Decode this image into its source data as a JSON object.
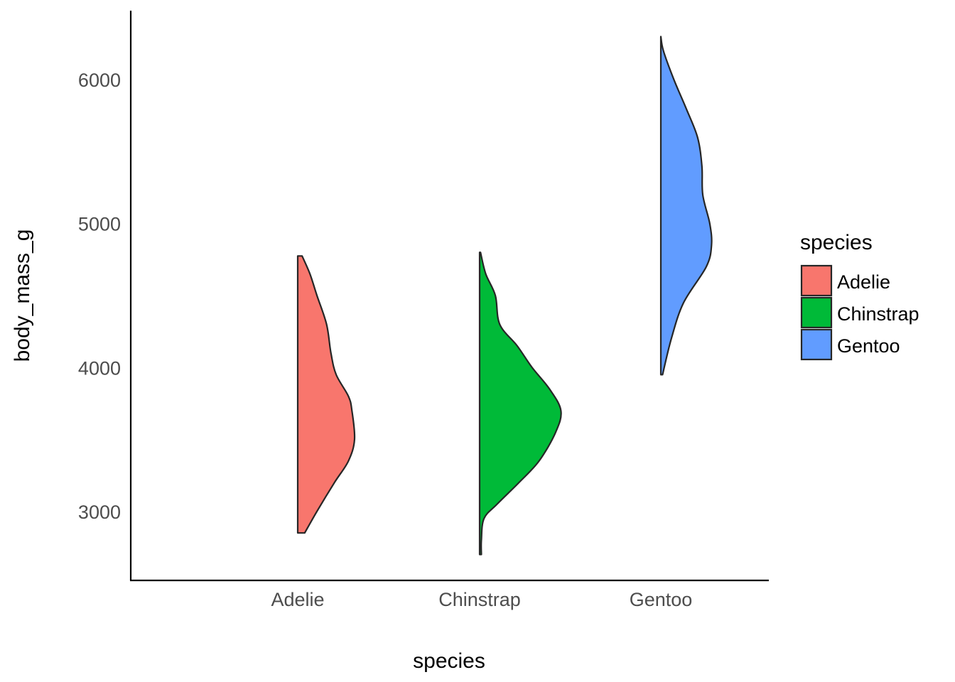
{
  "chart_data": {
    "type": "half-violin",
    "title": "",
    "xlabel": "species",
    "ylabel": "body_mass_g",
    "ylim": [
      2520,
      6480
    ],
    "yticks": [
      3000,
      4000,
      5000,
      6000
    ],
    "ytick_labels": [
      "3000",
      "4000",
      "5000",
      "6000"
    ],
    "categories": [
      "Adelie",
      "Chinstrap",
      "Gentoo"
    ],
    "grid": false,
    "legend": {
      "title": "species",
      "position": "right",
      "entries": [
        "Adelie",
        "Chinstrap",
        "Gentoo"
      ]
    },
    "series": [
      {
        "name": "Adelie",
        "color": "#F8766D",
        "min": 2850,
        "max": 4775,
        "density": [
          [
            2850,
            0.08
          ],
          [
            3000,
            0.22
          ],
          [
            3200,
            0.42
          ],
          [
            3350,
            0.58
          ],
          [
            3500,
            0.65
          ],
          [
            3700,
            0.62
          ],
          [
            3800,
            0.58
          ],
          [
            3950,
            0.44
          ],
          [
            4100,
            0.38
          ],
          [
            4300,
            0.33
          ],
          [
            4500,
            0.22
          ],
          [
            4650,
            0.14
          ],
          [
            4775,
            0.05
          ]
        ]
      },
      {
        "name": "Chinstrap",
        "color": "#00BA38",
        "min": 2700,
        "max": 4800,
        "density": [
          [
            2700,
            0.02
          ],
          [
            2800,
            0.02
          ],
          [
            2950,
            0.05
          ],
          [
            3050,
            0.2
          ],
          [
            3200,
            0.45
          ],
          [
            3350,
            0.68
          ],
          [
            3550,
            0.87
          ],
          [
            3700,
            0.93
          ],
          [
            3850,
            0.8
          ],
          [
            4000,
            0.6
          ],
          [
            4150,
            0.43
          ],
          [
            4300,
            0.23
          ],
          [
            4500,
            0.18
          ],
          [
            4650,
            0.07
          ],
          [
            4800,
            0.01
          ]
        ]
      },
      {
        "name": "Gentoo",
        "color": "#619CFF",
        "min": 3950,
        "max": 6300,
        "density": [
          [
            3950,
            0.02
          ],
          [
            4200,
            0.12
          ],
          [
            4450,
            0.26
          ],
          [
            4700,
            0.52
          ],
          [
            4850,
            0.58
          ],
          [
            5000,
            0.56
          ],
          [
            5200,
            0.48
          ],
          [
            5400,
            0.47
          ],
          [
            5600,
            0.42
          ],
          [
            5800,
            0.29
          ],
          [
            6000,
            0.15
          ],
          [
            6200,
            0.03
          ],
          [
            6300,
            0.0
          ]
        ]
      }
    ]
  }
}
